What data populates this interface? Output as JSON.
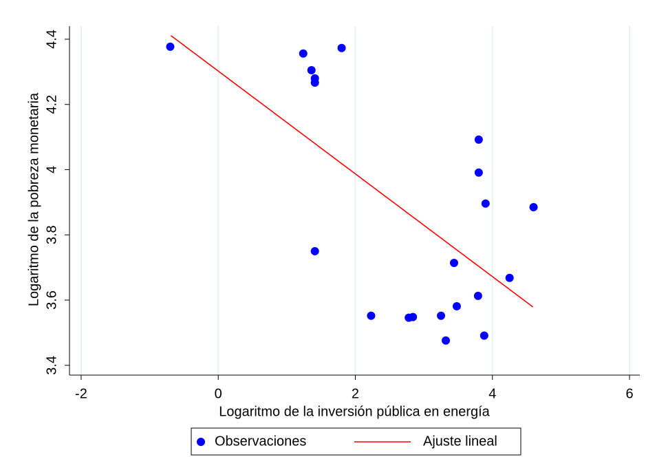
{
  "chart_data": {
    "type": "scatter",
    "xlabel": "Logaritmo de la inversión pública en energía",
    "ylabel": "Logaritmo de la pobreza monetaria",
    "xlim": [
      -2.17,
      6.15
    ],
    "ylim": [
      3.37,
      4.44
    ],
    "xticks": [
      -2,
      0,
      2,
      4,
      6
    ],
    "yticks": [
      3.4,
      3.6,
      3.8,
      4,
      4.2,
      4.4
    ],
    "xgrid": true,
    "legend": "bottom",
    "series": [
      {
        "name": "Observaciones",
        "mode": "markers",
        "color": "#0000ff",
        "x": [
          -0.7,
          1.24,
          1.36,
          1.41,
          1.41,
          1.8,
          3.8,
          3.8,
          3.9,
          4.6,
          1.41,
          3.44,
          4.25,
          3.79,
          3.48,
          2.23,
          2.78,
          2.84,
          3.25,
          3.88,
          3.32
        ],
        "values": [
          4.377,
          4.356,
          4.305,
          4.28,
          4.267,
          4.373,
          4.092,
          3.991,
          3.896,
          3.885,
          3.75,
          3.714,
          3.668,
          3.613,
          3.581,
          3.552,
          3.546,
          3.548,
          3.552,
          3.491,
          3.476
        ]
      },
      {
        "name": "Ajuste lineal",
        "mode": "line",
        "color": "#ff0000",
        "x": [
          -0.69,
          4.59
        ],
        "values": [
          4.411,
          3.579
        ]
      }
    ]
  }
}
